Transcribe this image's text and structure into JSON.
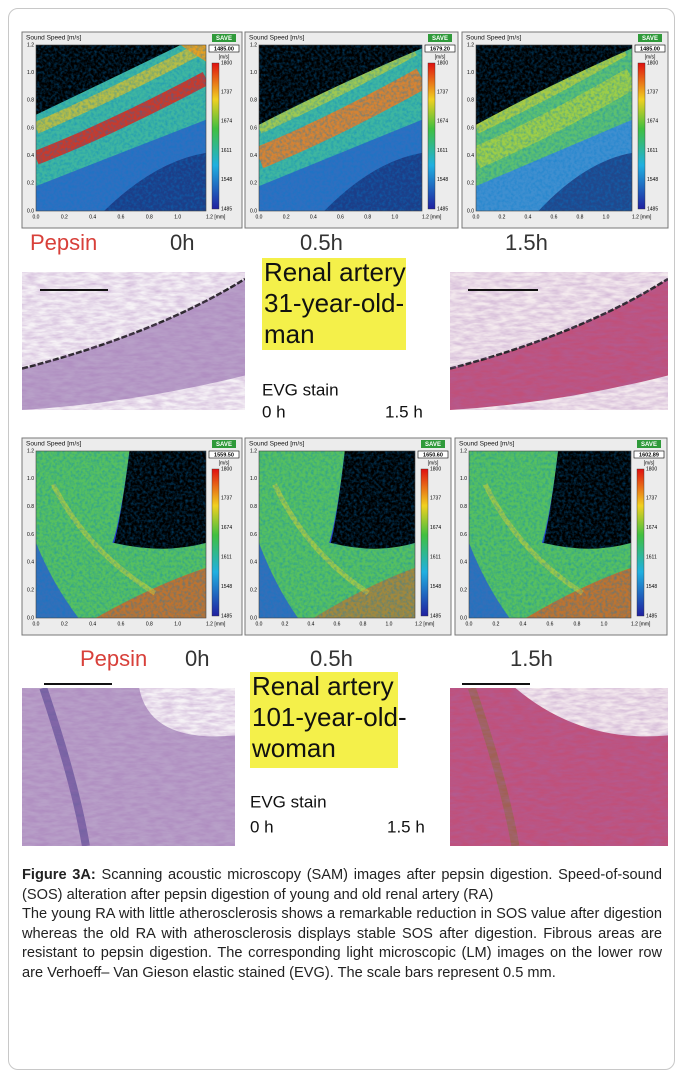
{
  "sam": {
    "title": "Sound Speed [m/s]",
    "save": "SAVE",
    "unit": "[m/s]",
    "scale": [
      "1800",
      "1737",
      "1674",
      "1611",
      "1548",
      "1485"
    ],
    "y_axis": [
      "1.2",
      "1.0",
      "0.8",
      "0.6",
      "0.4",
      "0.2",
      "0.0"
    ],
    "x_axis": [
      "0.0",
      "0.2",
      "0.4",
      "0.6",
      "0.8",
      "1.0",
      "1.2 [mm]"
    ]
  },
  "rows": [
    {
      "readouts": [
        "1485.00",
        "1679.20",
        "1485.00"
      ],
      "pepsin": "Pepsin",
      "times": [
        "0h",
        "0.5h",
        "1.5h"
      ],
      "sample": [
        "Renal artery",
        "31-year-old-",
        "man"
      ],
      "stain": "EVG stain",
      "lm_times": [
        "0 h",
        "1.5 h"
      ]
    },
    {
      "readouts": [
        "1559.50",
        "1650.60",
        "1602.89"
      ],
      "pepsin": "Pepsin",
      "times": [
        "0h",
        "0.5h",
        "1.5h"
      ],
      "sample": [
        "Renal artery",
        "101-year-old-",
        "woman"
      ],
      "stain": "EVG stain",
      "lm_times": [
        "0 h",
        "1.5 h"
      ]
    }
  ],
  "caption": {
    "label": "Figure 3A:",
    "title": "Scanning acoustic microscopy (SAM) images after pepsin digestion. Speed-of-sound (SOS) alteration after pepsin digestion of young and old renal artery (RA)",
    "body": "The young RA with little atherosclerosis shows a remarkable reduction in SOS value after digestion whereas the old RA with atherosclerosis displays stable SOS after digestion. Fibrous areas are resistant to pepsin digestion. The corresponding light microscopic (LM) images on the lower row are Verhoeff– Van Gieson elastic stained (EVG). The scale bars represent 0.5 mm."
  }
}
